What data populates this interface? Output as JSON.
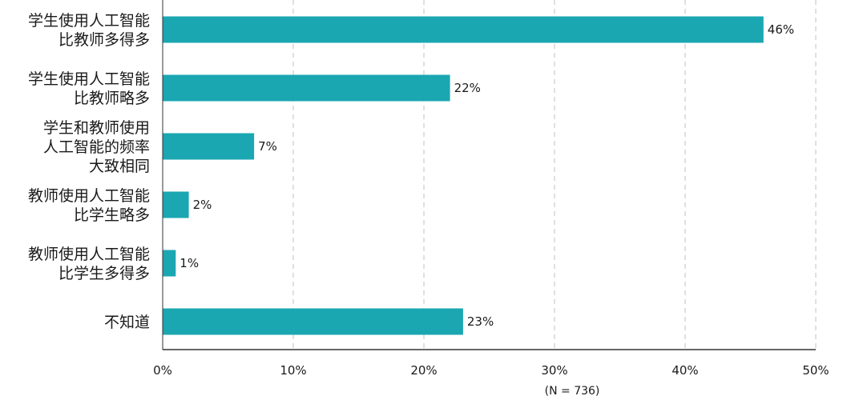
{
  "chart_data": {
    "type": "bar",
    "orientation": "horizontal",
    "categories": [
      [
        "学生使用人工智能",
        "比教师多得多"
      ],
      [
        "学生使用人工智能",
        "比教师略多"
      ],
      [
        "学生和教师使用",
        "人工智能的频率",
        "大致相同"
      ],
      [
        "教师使用人工智能",
        "比学生略多"
      ],
      [
        "教师使用人工智能",
        "比学生多得多"
      ],
      [
        "不知道"
      ]
    ],
    "values": [
      46,
      22,
      7,
      2,
      1,
      23
    ],
    "data_labels": [
      "46%",
      "22%",
      "7%",
      "2%",
      "1%",
      "23%"
    ],
    "x_ticks": [
      0,
      10,
      20,
      30,
      40,
      50
    ],
    "x_tick_labels": [
      "0%",
      "10%",
      "20%",
      "30%",
      "40%",
      "50%"
    ],
    "xlim": [
      0,
      50
    ],
    "grid": "vertical-dashed",
    "note": "(N = 736)",
    "bar_color": "#1aa7b2",
    "grid_color": "#cccccc",
    "axis_color": "#333333"
  }
}
